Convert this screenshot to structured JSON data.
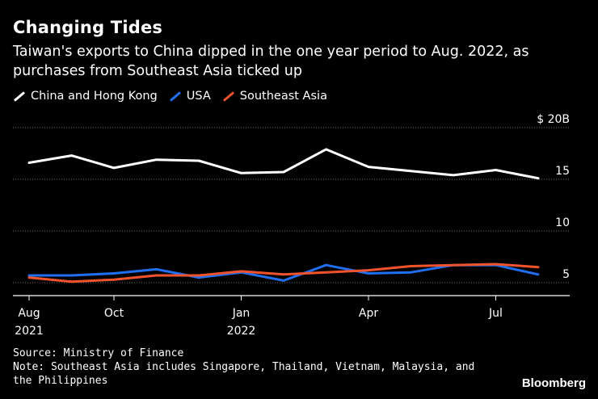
{
  "header": {
    "title": "Changing Tides",
    "subtitle": "Taiwan's exports to China dipped in the one year period to Aug. 2022, as purchases from Southeast Asia ticked up"
  },
  "footer": {
    "source": "Source: Ministry of Finance",
    "note": "Note: Southeast Asia includes Singapore, Thailand, Vietnam, Malaysia, and the Philippines",
    "brand": "Bloomberg"
  },
  "chart_data": {
    "type": "line",
    "x": [
      "2021-08",
      "2021-09",
      "2021-10",
      "2021-11",
      "2021-12",
      "2022-01",
      "2022-02",
      "2022-03",
      "2022-04",
      "2022-05",
      "2022-06",
      "2022-07",
      "2022-08"
    ],
    "x_ticks": [
      {
        "x": "2021-08",
        "label": "Aug",
        "sublabel": "2021"
      },
      {
        "x": "2021-10",
        "label": "Oct",
        "sublabel": ""
      },
      {
        "x": "2022-01",
        "label": "Jan",
        "sublabel": "2022"
      },
      {
        "x": "2022-04",
        "label": "Apr",
        "sublabel": ""
      },
      {
        "x": "2022-07",
        "label": "Jul",
        "sublabel": ""
      }
    ],
    "y_ticks": [
      {
        "value": 20,
        "label": "$ 20B"
      },
      {
        "value": 15,
        "label": "15"
      },
      {
        "value": 10,
        "label": "10"
      },
      {
        "value": 5,
        "label": "5"
      }
    ],
    "ylim": [
      3.75,
      20
    ],
    "legend_position": "top-left",
    "grid": "horizontal dotted",
    "series": [
      {
        "name": "China and Hong Kong",
        "color": "#ffffff",
        "values": [
          16.6,
          17.3,
          16.1,
          16.9,
          16.8,
          15.6,
          15.7,
          17.9,
          16.2,
          15.8,
          15.4,
          15.9,
          15.1
        ]
      },
      {
        "name": "USA",
        "color": "#1f6ff0",
        "values": [
          5.7,
          5.7,
          5.9,
          6.3,
          5.5,
          6.0,
          5.2,
          6.7,
          5.9,
          6.0,
          6.7,
          6.7,
          5.8
        ]
      },
      {
        "name": "Southeast Asia",
        "color": "#f0532b",
        "values": [
          5.5,
          5.1,
          5.3,
          5.7,
          5.7,
          6.1,
          5.8,
          6.0,
          6.2,
          6.6,
          6.7,
          6.8,
          6.5
        ]
      }
    ]
  }
}
